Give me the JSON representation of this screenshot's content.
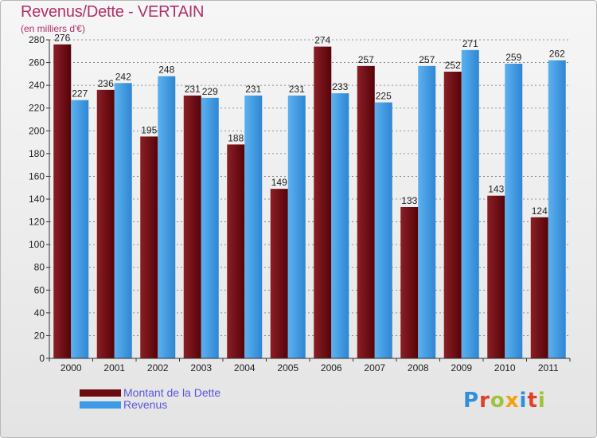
{
  "header": {
    "title": "Revenus/Dette - VERTAIN",
    "subtitle": "(en milliers d'€)"
  },
  "legend": {
    "items": [
      {
        "label": "Montant de la Dette",
        "color": "#6b0a10"
      },
      {
        "label": "Revenus",
        "color": "#3d9ae6"
      }
    ]
  },
  "logo": {
    "letters": [
      {
        "char": "P",
        "color": "#2f8fd8"
      },
      {
        "char": "r",
        "color": "#e0402a"
      },
      {
        "char": "o",
        "color": "#9dc43b"
      },
      {
        "char": "x",
        "color": "#f2a20f"
      },
      {
        "char": "i",
        "color": "#2f8fd8"
      },
      {
        "char": "t",
        "color": "#e0402a"
      },
      {
        "char": "i",
        "color": "#9dc43b"
      }
    ]
  },
  "colors": {
    "debt": "#6b0a10",
    "revenue": "#3d9ae6",
    "axis_text": "#222222",
    "grid": "#777777"
  },
  "chart_data": {
    "type": "bar",
    "categories": [
      "2000",
      "2001",
      "2002",
      "2003",
      "2004",
      "2005",
      "2006",
      "2007",
      "2008",
      "2009",
      "2010",
      "2011"
    ],
    "series": [
      {
        "name": "Montant de la Dette",
        "values": [
          276,
          236,
          195,
          231,
          188,
          149,
          274,
          257,
          133,
          252,
          143,
          124
        ]
      },
      {
        "name": "Revenus",
        "values": [
          227,
          242,
          248,
          229,
          231,
          231,
          233,
          225,
          257,
          271,
          259,
          262
        ]
      }
    ],
    "title": "Revenus/Dette - VERTAIN",
    "ylabel": "(en milliers d'€)",
    "ylim": [
      0,
      280
    ],
    "yticks": [
      "0",
      "20",
      "40",
      "60",
      "80",
      "100",
      "120",
      "140",
      "160",
      "180",
      "200",
      "220",
      "240",
      "260",
      "280"
    ],
    "grid": true,
    "legend_position": "bottom-left"
  }
}
